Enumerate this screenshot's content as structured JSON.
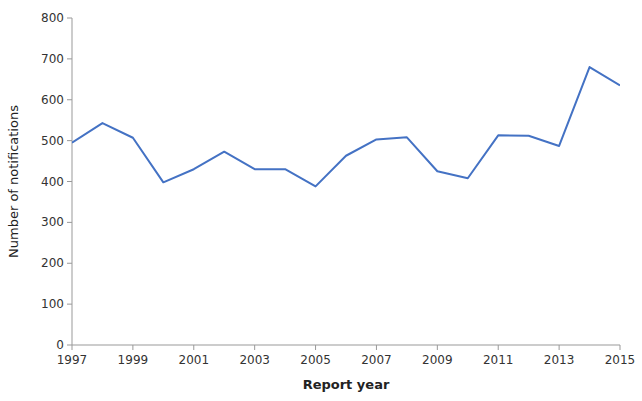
{
  "chart_data": {
    "type": "line",
    "x": [
      1997,
      1998,
      1999,
      2000,
      2001,
      2002,
      2003,
      2004,
      2005,
      2006,
      2007,
      2008,
      2009,
      2010,
      2011,
      2012,
      2013,
      2014,
      2015
    ],
    "values": [
      495,
      543,
      507,
      398,
      430,
      473,
      430,
      430,
      388,
      463,
      503,
      508,
      425,
      408,
      513,
      512,
      487,
      680,
      635
    ],
    "color": "#4472C4",
    "x_label": "Report year",
    "y_label": "Number of notifications",
    "xlim": [
      1997,
      2015
    ],
    "ylim": [
      0,
      800
    ],
    "xticks": [
      1997,
      1999,
      2001,
      2003,
      2005,
      2007,
      2009,
      2011,
      2013,
      2015
    ],
    "yticks": [
      0,
      100,
      200,
      300,
      400,
      500,
      600,
      700,
      800
    ],
    "grid": false
  }
}
